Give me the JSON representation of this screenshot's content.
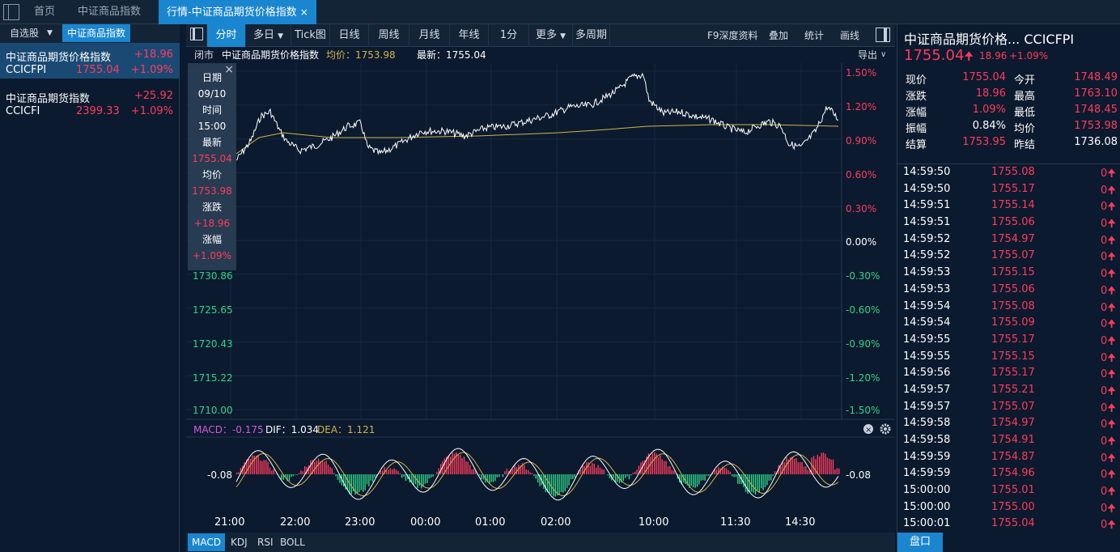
{
  "tabs": {
    "home": "首页",
    "index_tab": "中证商品指数",
    "active_tab": "行情-中证商品期货价格指数",
    "close": "×"
  },
  "left": {
    "tab_watchlist": "自选股",
    "tab_active": "中证商品指数",
    "items": [
      {
        "name": "中证商品期货价格指数",
        "change": "+18.96",
        "code": "CCICFPI",
        "price": "1755.04",
        "pct": "+1.09%"
      },
      {
        "name": "中证商品期货指数",
        "change": "+25.92",
        "code": "CCICFI",
        "price": "2399.33",
        "pct": "+1.09%"
      }
    ]
  },
  "toolbar": {
    "buttons": [
      "分时",
      "多日",
      "Tick图",
      "日线",
      "周线",
      "月线",
      "年线",
      "1分",
      "更多",
      "多周期"
    ],
    "right": [
      "F9深度资料",
      "叠加",
      "统计",
      "画线"
    ]
  },
  "info": {
    "status": "闭市",
    "name": "中证商品期货价格指数",
    "avg": "均价：1753.98",
    "last": "最新：1755.04",
    "export": "导出"
  },
  "axes": {
    "left": [
      "1730.86",
      "1725.65",
      "1720.43",
      "1715.22",
      "1710.00"
    ],
    "right": [
      "1.50%",
      "1.20%",
      "0.90%",
      "0.60%",
      "0.30%",
      "0.00%",
      "-0.30%",
      "-0.60%",
      "-0.90%",
      "-1.20%",
      "-1.50%"
    ],
    "time": [
      "21:00",
      "22:00",
      "23:00",
      "00:00",
      "01:00",
      "02:00",
      "10:00",
      "11:30",
      "14:30"
    ]
  },
  "macd": {
    "label": "MACD：-0.175",
    "dif": "DIF：1.034",
    "dea": "DEA：1.121",
    "axis_left": "-0.08",
    "axis_right": "-0.08"
  },
  "tooltip": {
    "date_label": "日期",
    "date": "09/10",
    "time_label": "时间",
    "time": "15:00",
    "last_label": "最新",
    "last": "1755.04",
    "avg_label": "均价",
    "avg": "1753.98",
    "chg_label": "涨跌",
    "chg": "+18.96",
    "pct_label": "涨幅",
    "pct": "+1.09%",
    "close": "×"
  },
  "indicators": [
    "MACD",
    "KDJ",
    "RSI",
    "BOLL"
  ],
  "right": {
    "title": "中证商品期货价格...  CCICFPI",
    "price": "1755.04",
    "change": "18.96",
    "pct": "+1.09%",
    "quote": [
      {
        "l1": "现价",
        "v1": "1755.04",
        "l2": "今开",
        "v2": "1748.49"
      },
      {
        "l1": "涨跌",
        "v1": "18.96",
        "l2": "最高",
        "v2": "1763.10"
      },
      {
        "l1": "涨幅",
        "v1": "1.09%",
        "l2": "最低",
        "v2": "1748.45"
      },
      {
        "l1": "振幅",
        "v1": "0.84%",
        "l2": "均价",
        "v2": "1753.98"
      },
      {
        "l1": "结算",
        "v1": "1753.95",
        "l2": "昨结",
        "v2": "1736.08"
      }
    ],
    "ticks": [
      {
        "t": "14:59:50",
        "p": "1755.08",
        "v": "0"
      },
      {
        "t": "14:59:50",
        "p": "1755.17",
        "v": "0"
      },
      {
        "t": "14:59:51",
        "p": "1755.14",
        "v": "0"
      },
      {
        "t": "14:59:51",
        "p": "1755.06",
        "v": "0"
      },
      {
        "t": "14:59:52",
        "p": "1754.97",
        "v": "0"
      },
      {
        "t": "14:59:52",
        "p": "1755.07",
        "v": "0"
      },
      {
        "t": "14:59:53",
        "p": "1755.15",
        "v": "0"
      },
      {
        "t": "14:59:53",
        "p": "1755.06",
        "v": "0"
      },
      {
        "t": "14:59:54",
        "p": "1755.08",
        "v": "0"
      },
      {
        "t": "14:59:54",
        "p": "1755.09",
        "v": "0"
      },
      {
        "t": "14:59:55",
        "p": "1755.17",
        "v": "0"
      },
      {
        "t": "14:59:55",
        "p": "1755.15",
        "v": "0"
      },
      {
        "t": "14:59:56",
        "p": "1755.17",
        "v": "0"
      },
      {
        "t": "14:59:57",
        "p": "1755.21",
        "v": "0"
      },
      {
        "t": "14:59:57",
        "p": "1755.07",
        "v": "0"
      },
      {
        "t": "14:59:58",
        "p": "1754.97",
        "v": "0"
      },
      {
        "t": "14:59:58",
        "p": "1754.91",
        "v": "0"
      },
      {
        "t": "14:59:59",
        "p": "1754.87",
        "v": "0"
      },
      {
        "t": "14:59:59",
        "p": "1754.96",
        "v": "0"
      },
      {
        "t": "15:00:00",
        "p": "1755.01",
        "v": "0"
      },
      {
        "t": "15:00:00",
        "p": "1755.00",
        "v": "0"
      },
      {
        "t": "15:00:01",
        "p": "1755.04",
        "v": "0"
      }
    ],
    "pankou": "盘口"
  },
  "colors": {
    "up": "#ff3b5c",
    "down": "#2fd38a",
    "price_line": "#ffffff",
    "avg_line": "#d4b24a",
    "accent": "#1a86d0"
  }
}
